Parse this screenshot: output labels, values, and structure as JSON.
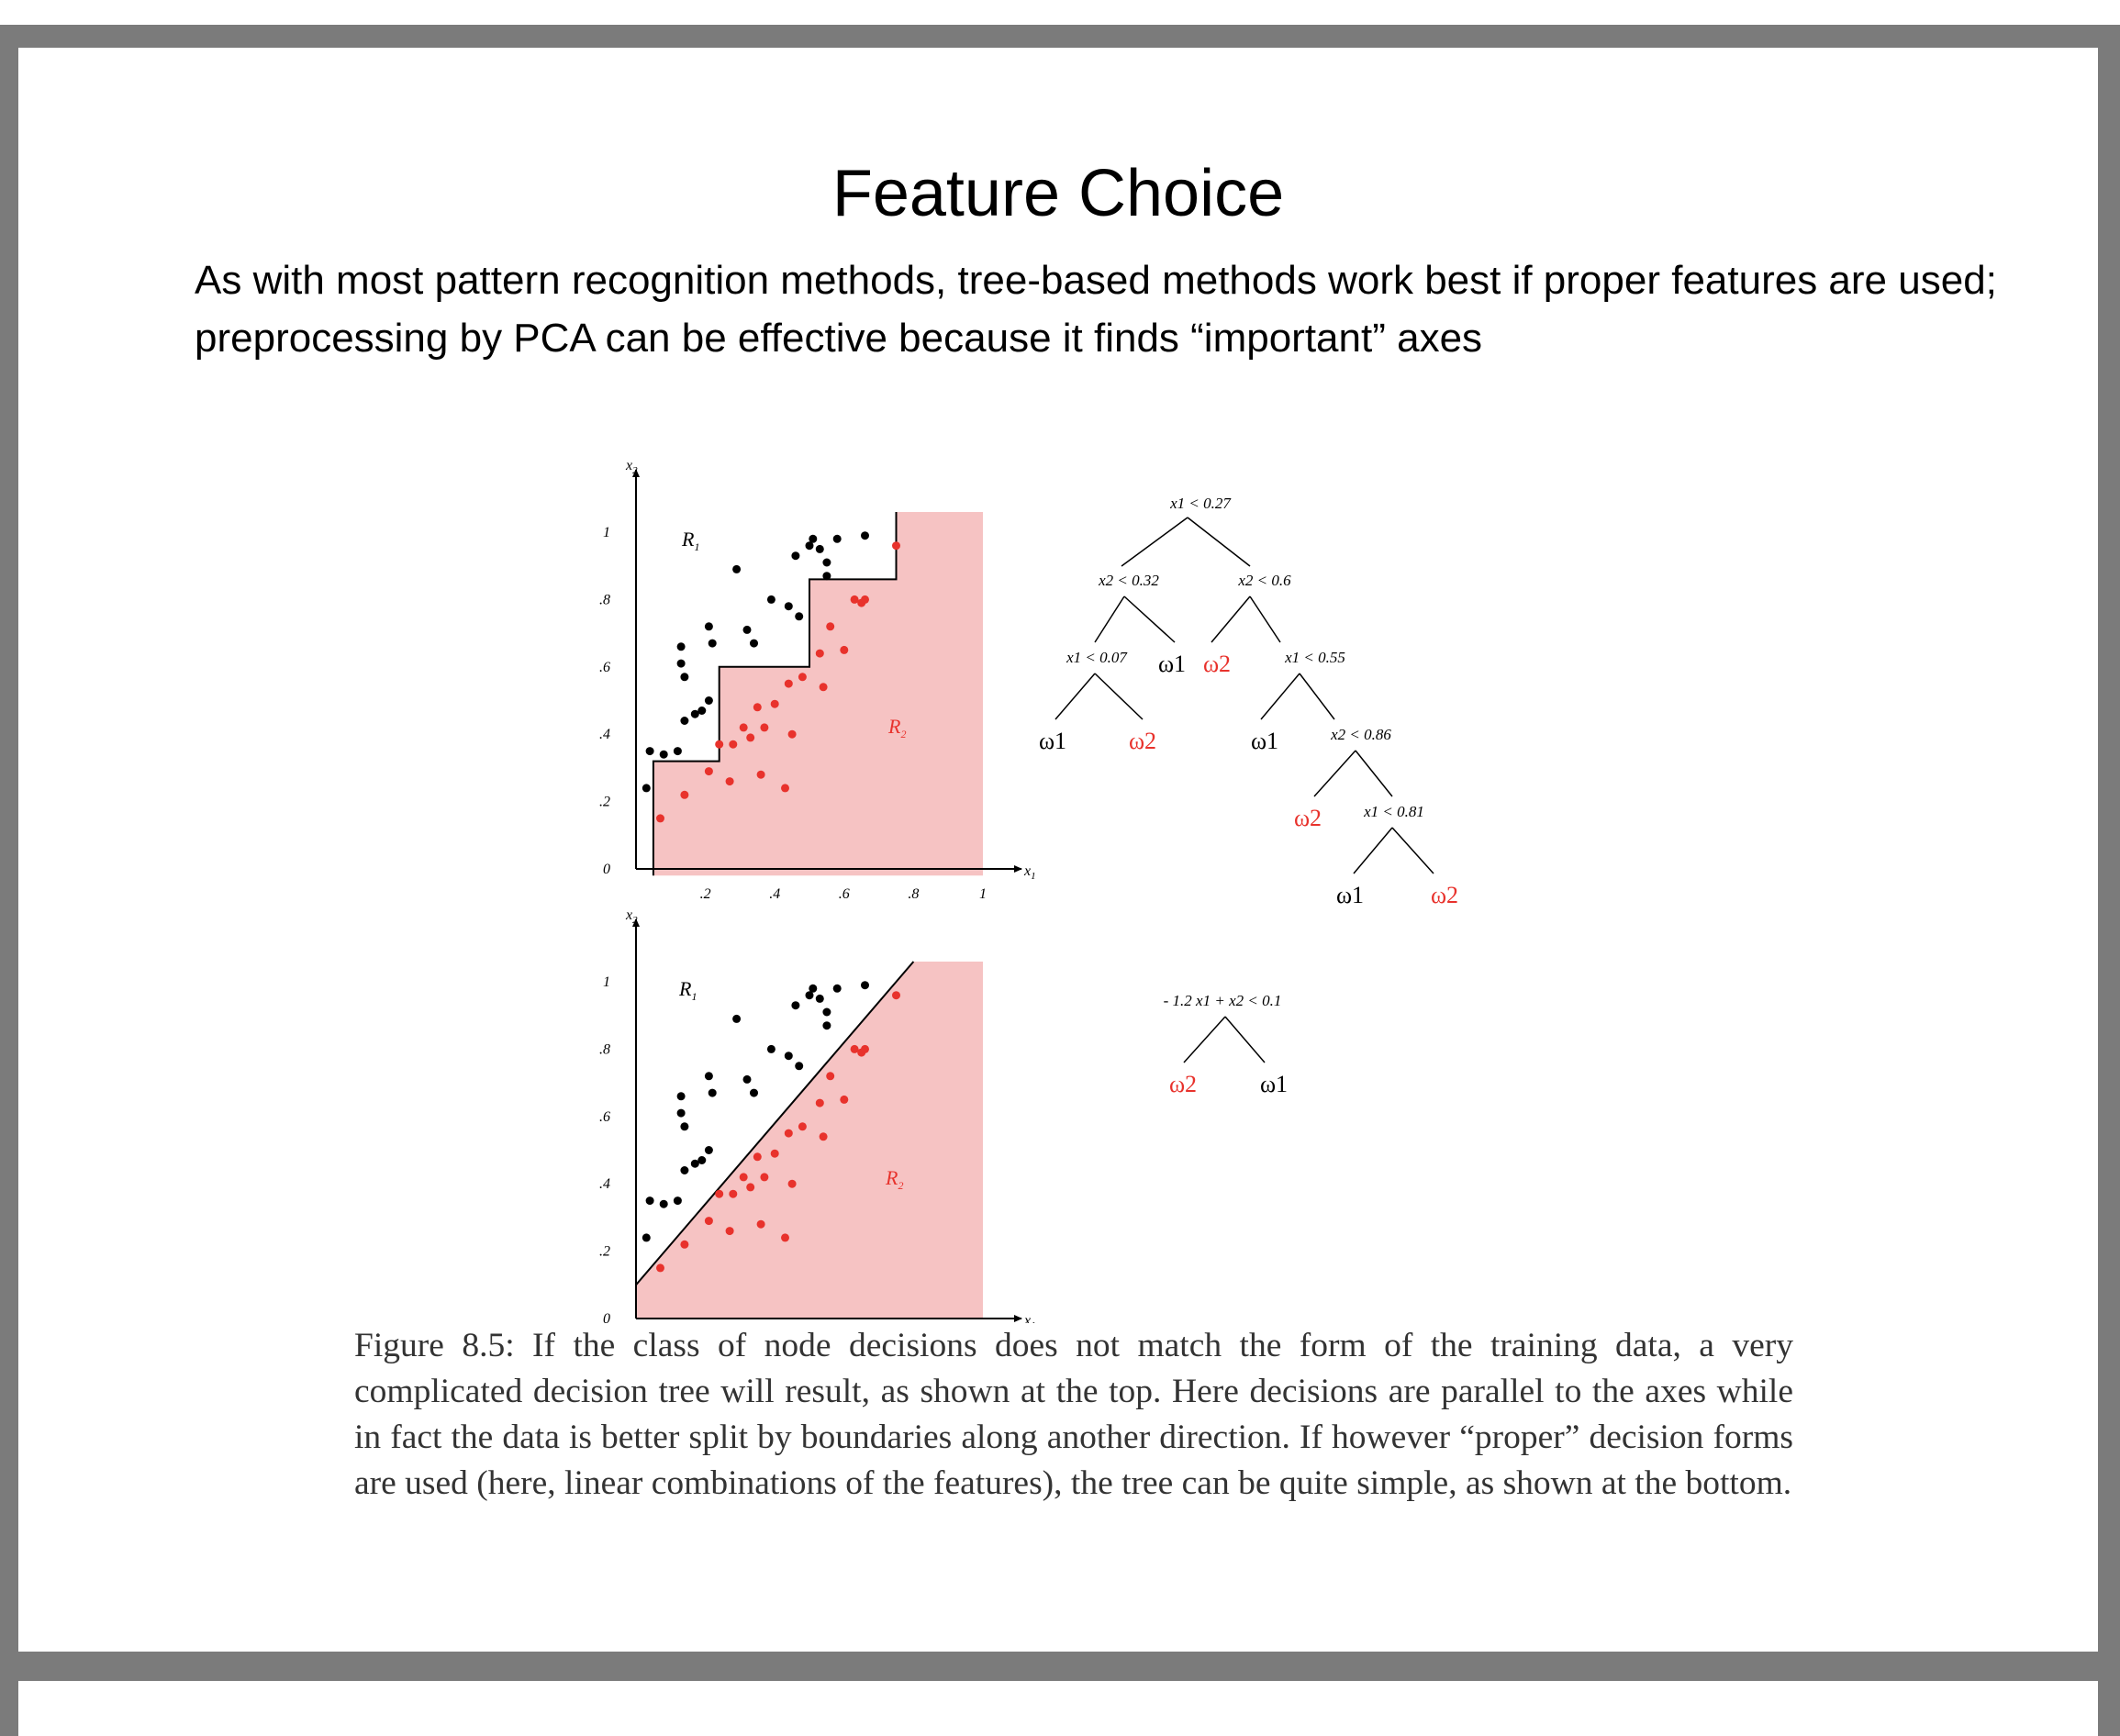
{
  "slide": {
    "title": "Feature Choice",
    "subtitle": "As with most pattern recognition methods, tree-based methods work best if proper features are used; preprocessing by PCA can be effective because it finds “important” axes"
  },
  "figure": {
    "caption": "Figure 8.5: If the class of node decisions does not match the form of the training data, a very complicated decision tree will result, as shown at the top. Here decisions are parallel to the axes while in fact the data is better split by boundaries along another direction. If however “proper” decision forms are used (here, linear combinations of the features), the tree can be quite simple, as shown at the bottom.",
    "colors": {
      "class1": "#000000",
      "class2": "#e8322c",
      "region2": "#f6c3c3"
    },
    "plots": {
      "x_axis_label": "x1",
      "y_axis_label": "x2",
      "x_ticks": [
        ".2",
        ".4",
        ".6",
        ".8",
        "1"
      ],
      "y_ticks": [
        "0",
        ".2",
        ".4",
        ".6",
        ".8",
        "1"
      ],
      "region_labels": [
        "R1",
        "R2"
      ]
    },
    "tree_top": {
      "nodes": {
        "root": "x1 < 0.27",
        "n2": "x2 < 0.32",
        "n3": "x2 < 0.6",
        "n4": "x1 < 0.07",
        "n5": "x1 < 0.55",
        "n6": "x2 < 0.86",
        "n7": "x1 < 0.81"
      },
      "leaf_w1": "ω1",
      "leaf_w2": "ω2"
    },
    "tree_bottom": {
      "root": "- 1.2 x1 + x2 < 0.1",
      "leaf_left": "ω2",
      "leaf_right": "ω1"
    }
  },
  "chart_data": [
    {
      "type": "scatter",
      "xlabel": "x1",
      "ylabel": "x2",
      "xlim": [
        0,
        1
      ],
      "ylim": [
        0,
        1
      ],
      "region_boundary_type": "axis-parallel staircase",
      "series": [
        {
          "name": "ω1",
          "points": [
            [
              0.04,
              0.35
            ],
            [
              0.08,
              0.34
            ],
            [
              0.12,
              0.35
            ],
            [
              0.03,
              0.24
            ],
            [
              0.13,
              0.66
            ],
            [
              0.13,
              0.61
            ],
            [
              0.14,
              0.57
            ],
            [
              0.14,
              0.44
            ],
            [
              0.17,
              0.46
            ],
            [
              0.19,
              0.47
            ],
            [
              0.21,
              0.5
            ],
            [
              0.21,
              0.72
            ],
            [
              0.22,
              0.67
            ],
            [
              0.29,
              0.89
            ],
            [
              0.32,
              0.71
            ],
            [
              0.34,
              0.67
            ],
            [
              0.39,
              0.8
            ],
            [
              0.44,
              0.78
            ],
            [
              0.46,
              0.93
            ],
            [
              0.47,
              0.75
            ],
            [
              0.5,
              0.96
            ],
            [
              0.51,
              0.98
            ],
            [
              0.53,
              0.95
            ],
            [
              0.55,
              0.91
            ],
            [
              0.58,
              0.98
            ],
            [
              0.66,
              0.99
            ],
            [
              0.55,
              0.87
            ]
          ]
        },
        {
          "name": "ω2",
          "points": [
            [
              0.07,
              0.15
            ],
            [
              0.14,
              0.22
            ],
            [
              0.21,
              0.29
            ],
            [
              0.24,
              0.37
            ],
            [
              0.27,
              0.26
            ],
            [
              0.28,
              0.37
            ],
            [
              0.31,
              0.42
            ],
            [
              0.33,
              0.39
            ],
            [
              0.35,
              0.48
            ],
            [
              0.36,
              0.28
            ],
            [
              0.37,
              0.42
            ],
            [
              0.4,
              0.49
            ],
            [
              0.43,
              0.24
            ],
            [
              0.44,
              0.55
            ],
            [
              0.45,
              0.4
            ],
            [
              0.48,
              0.57
            ],
            [
              0.53,
              0.64
            ],
            [
              0.54,
              0.54
            ],
            [
              0.56,
              0.72
            ],
            [
              0.6,
              0.65
            ],
            [
              0.63,
              0.8
            ],
            [
              0.65,
              0.79
            ],
            [
              0.66,
              0.8
            ],
            [
              0.75,
              0.96
            ]
          ]
        }
      ]
    },
    {
      "type": "scatter",
      "xlabel": "x1",
      "ylabel": "x2",
      "xlim": [
        0,
        1
      ],
      "ylim": [
        0,
        1
      ],
      "region_boundary_type": "oblique line -1.2 x1 + x2 = 0.1",
      "series": [
        {
          "name": "ω1",
          "points": [
            [
              0.04,
              0.35
            ],
            [
              0.08,
              0.34
            ],
            [
              0.12,
              0.35
            ],
            [
              0.03,
              0.24
            ],
            [
              0.13,
              0.66
            ],
            [
              0.13,
              0.61
            ],
            [
              0.14,
              0.57
            ],
            [
              0.14,
              0.44
            ],
            [
              0.17,
              0.46
            ],
            [
              0.19,
              0.47
            ],
            [
              0.21,
              0.5
            ],
            [
              0.21,
              0.72
            ],
            [
              0.22,
              0.67
            ],
            [
              0.29,
              0.89
            ],
            [
              0.32,
              0.71
            ],
            [
              0.34,
              0.67
            ],
            [
              0.39,
              0.8
            ],
            [
              0.44,
              0.78
            ],
            [
              0.46,
              0.93
            ],
            [
              0.47,
              0.75
            ],
            [
              0.5,
              0.96
            ],
            [
              0.51,
              0.98
            ],
            [
              0.53,
              0.95
            ],
            [
              0.55,
              0.91
            ],
            [
              0.58,
              0.98
            ],
            [
              0.66,
              0.99
            ],
            [
              0.55,
              0.87
            ]
          ]
        },
        {
          "name": "ω2",
          "points": [
            [
              0.07,
              0.15
            ],
            [
              0.14,
              0.22
            ],
            [
              0.21,
              0.29
            ],
            [
              0.24,
              0.37
            ],
            [
              0.27,
              0.26
            ],
            [
              0.28,
              0.37
            ],
            [
              0.31,
              0.42
            ],
            [
              0.33,
              0.39
            ],
            [
              0.35,
              0.48
            ],
            [
              0.36,
              0.28
            ],
            [
              0.37,
              0.42
            ],
            [
              0.4,
              0.49
            ],
            [
              0.43,
              0.24
            ],
            [
              0.44,
              0.55
            ],
            [
              0.45,
              0.4
            ],
            [
              0.48,
              0.57
            ],
            [
              0.53,
              0.64
            ],
            [
              0.54,
              0.54
            ],
            [
              0.56,
              0.72
            ],
            [
              0.6,
              0.65
            ],
            [
              0.63,
              0.8
            ],
            [
              0.65,
              0.79
            ],
            [
              0.66,
              0.8
            ],
            [
              0.75,
              0.96
            ]
          ]
        }
      ]
    }
  ]
}
